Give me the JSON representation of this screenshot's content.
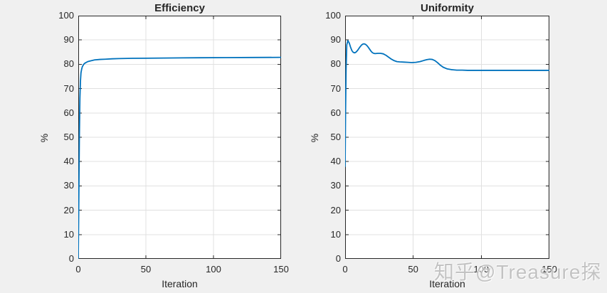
{
  "figure": {
    "watermark": "知乎@Treasure探",
    "background": "#f0f0f0"
  },
  "colors": {
    "axis": "#262626",
    "grid": "#e0e0e0",
    "plot_background": "#ffffff",
    "line": "#0072bd",
    "watermark": "#b9b9b9"
  },
  "chart_data": [
    {
      "type": "line",
      "title": "Efficiency",
      "xlabel": "Iteration",
      "ylabel": "%",
      "xlim": [
        0,
        150
      ],
      "ylim": [
        0,
        100
      ],
      "xticks": [
        0,
        50,
        100,
        150
      ],
      "yticks": [
        0,
        10,
        20,
        30,
        40,
        50,
        60,
        70,
        80,
        90,
        100
      ],
      "grid": true,
      "legend": "none",
      "line_color": "#0072bd",
      "x": [
        0,
        0.4,
        0.8,
        1.2,
        1.6,
        2,
        2.5,
        3,
        4,
        5,
        7,
        9,
        12,
        16,
        20,
        25,
        30,
        40,
        50,
        70,
        90,
        110,
        130,
        150
      ],
      "y": [
        0,
        25,
        50,
        66,
        73,
        76.5,
        78,
        79,
        80,
        80.5,
        81.1,
        81.4,
        81.8,
        82,
        82.1,
        82.25,
        82.35,
        82.45,
        82.5,
        82.6,
        82.7,
        82.75,
        82.8,
        82.85
      ]
    },
    {
      "type": "line",
      "title": "Uniformity",
      "xlabel": "Iteration",
      "ylabel": "%",
      "xlim": [
        0,
        150
      ],
      "ylim": [
        0,
        100
      ],
      "xticks": [
        0,
        50,
        100,
        150
      ],
      "yticks": [
        0,
        10,
        20,
        30,
        40,
        50,
        60,
        70,
        80,
        90,
        100
      ],
      "grid": true,
      "legend": "none",
      "line_color": "#0072bd",
      "x": [
        0,
        0.3,
        0.7,
        1.2,
        2,
        3,
        4,
        5,
        6,
        7,
        8,
        9,
        10,
        11,
        12,
        13,
        14,
        15,
        16,
        17,
        18,
        19,
        20,
        21,
        22,
        24,
        26,
        28,
        30,
        32,
        34,
        36,
        38,
        40,
        43,
        46,
        49,
        52,
        55,
        58,
        60,
        62,
        64,
        66,
        68,
        70,
        72,
        75,
        78,
        82,
        86,
        90,
        100,
        110,
        130,
        150
      ],
      "y": [
        38,
        60,
        78,
        88,
        89.7,
        88.8,
        87,
        85.6,
        84.9,
        84.7,
        85,
        85.6,
        86.4,
        87.2,
        87.9,
        88.3,
        88.4,
        88.2,
        87.7,
        87,
        86.2,
        85.4,
        84.8,
        84.5,
        84.4,
        84.5,
        84.5,
        84.3,
        83.7,
        82.9,
        82.1,
        81.5,
        81.1,
        81,
        80.9,
        80.8,
        80.7,
        80.8,
        81.1,
        81.6,
        81.9,
        82.1,
        82,
        81.5,
        80.6,
        79.6,
        78.8,
        78.1,
        77.8,
        77.6,
        77.6,
        77.5,
        77.5,
        77.5,
        77.5,
        77.5
      ]
    }
  ]
}
